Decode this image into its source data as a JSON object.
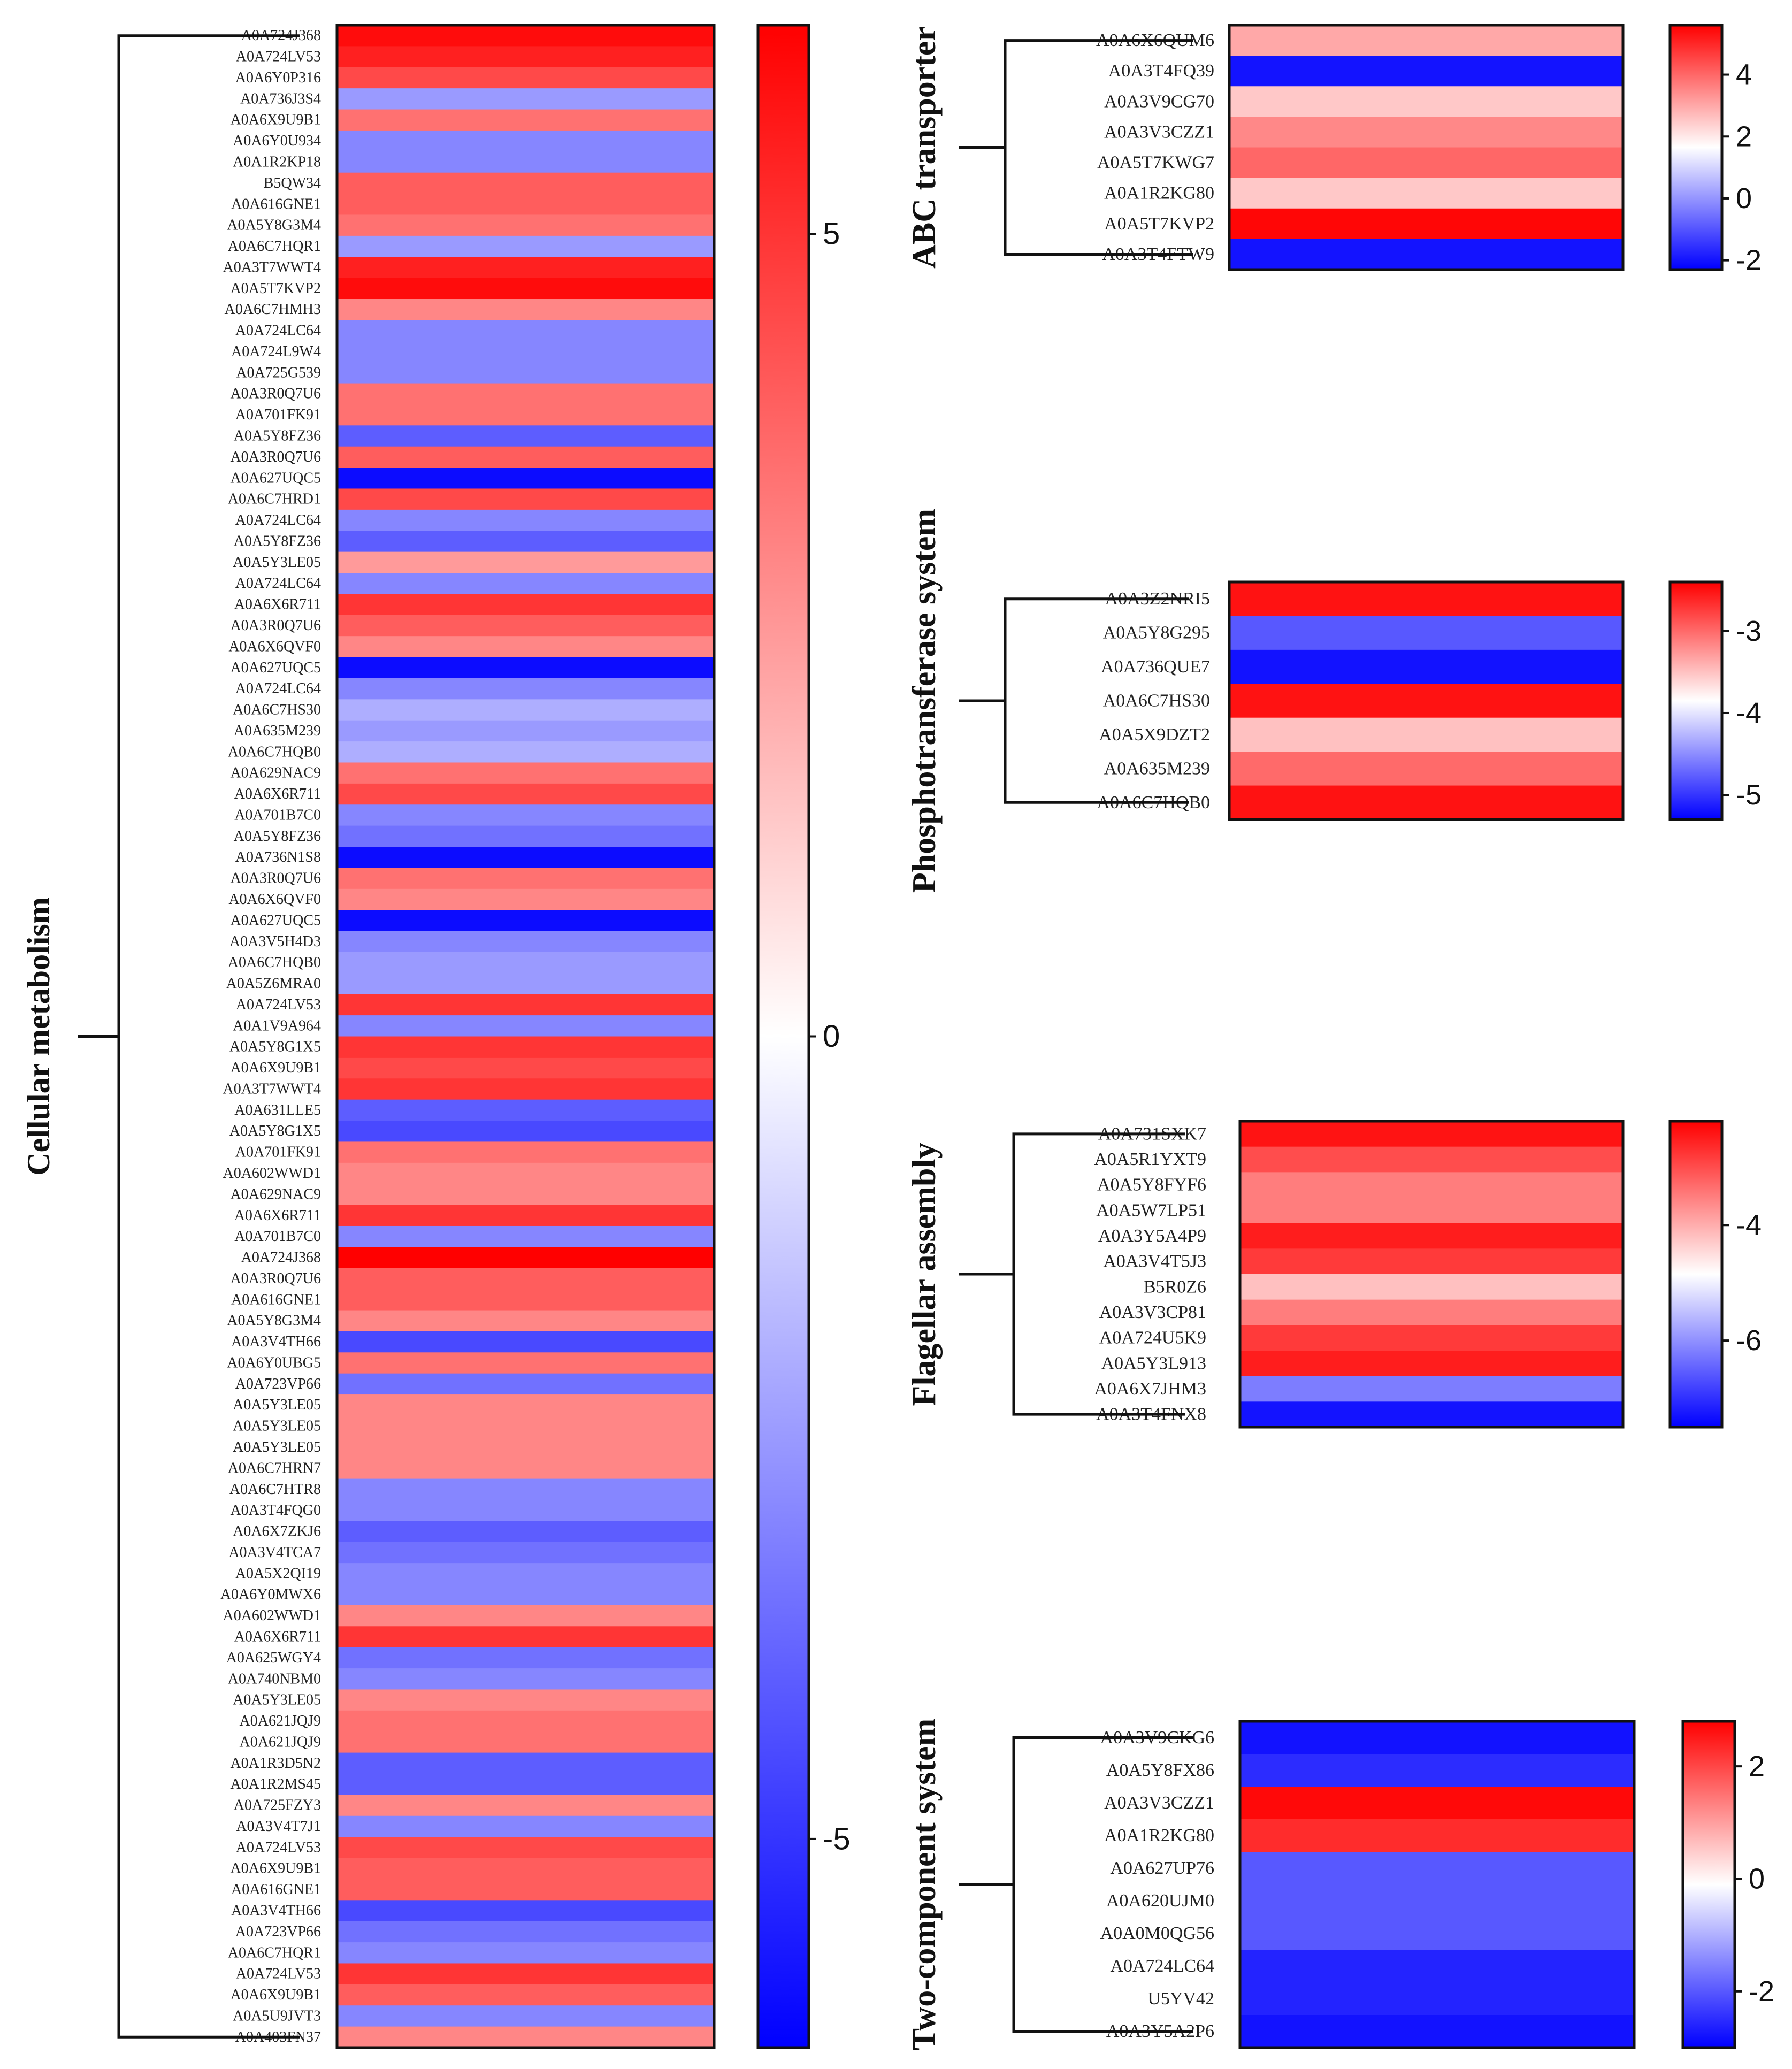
{
  "chart_data": [
    {
      "type": "heatmap",
      "title": "Cellular metabolism",
      "colorscale": [
        "#0000ff",
        "#ffffff",
        "#ff0000"
      ],
      "colorbar": {
        "range": [
          -6.3,
          6.3
        ],
        "ticks": [
          5,
          0,
          -5
        ],
        "tick_labels": [
          "5",
          "0",
          "-5"
        ]
      },
      "rows": [
        "A0A724J368",
        "A0A724LV53",
        "A0A6Y0P316",
        "A0A736J3S4",
        "A0A6X9U9B1",
        "A0A6Y0U934",
        "A0A1R2KP18",
        "B5QW34",
        "A0A616GNE1",
        "A0A5Y8G3M4",
        "A0A6C7HQR1",
        "A0A3T7WWT4",
        "A0A5T7KVP2",
        "A0A6C7HMH3",
        "A0A724LC64",
        "A0A724L9W4",
        "A0A725G539",
        "A0A3R0Q7U6",
        "A0A701FK91",
        "A0A5Y8FZ36",
        "A0A3R0Q7U6",
        "A0A627UQC5",
        "A0A6C7HRD1",
        "A0A724LC64",
        "A0A5Y8FZ36",
        "A0A5Y3LE05",
        "A0A724LC64",
        "A0A6X6R711",
        "A0A3R0Q7U6",
        "A0A6X6QVF0",
        "A0A627UQC5",
        "A0A724LC64",
        "A0A6C7HS30",
        "A0A635M239",
        "A0A6C7HQB0",
        "A0A629NAC9",
        "A0A6X6R711",
        "A0A701B7C0",
        "A0A5Y8FZ36",
        "A0A736N1S8",
        "A0A3R0Q7U6",
        "A0A6X6QVF0",
        "A0A627UQC5",
        "A0A3V5H4D3",
        "A0A6C7HQB0",
        "A0A5Z6MRA0",
        "A0A724LV53",
        "A0A1V9A964",
        "A0A5Y8G1X5",
        "A0A6X9U9B1",
        "A0A3T7WWT4",
        "A0A631LLE5",
        "A0A5Y8G1X5",
        "A0A701FK91",
        "A0A602WWD1",
        "A0A629NAC9",
        "A0A6X6R711",
        "A0A701B7C0",
        "A0A724J368",
        "A0A3R0Q7U6",
        "A0A616GNE1",
        "A0A5Y8G3M4",
        "A0A3V4TH66",
        "A0A6Y0UBG5",
        "A0A723VP66",
        "A0A5Y3LE05",
        "A0A5Y3LE05",
        "A0A5Y3LE05",
        "A0A6C7HRN7",
        "A0A6C7HTR8",
        "A0A3T4FQG0",
        "A0A6X7ZKJ6",
        "A0A3V4TCA7",
        "A0A5X2QI19",
        "A0A6Y0MWX6",
        "A0A602WWD1",
        "A0A6X6R711",
        "A0A625WGY4",
        "A0A740NBM0",
        "A0A5Y3LE05",
        "A0A621JQJ9",
        "A0A621JQJ9",
        "A0A1R3D5N2",
        "A0A1R2MS45",
        "A0A725FZY3",
        "A0A3V4T7J1",
        "A0A724LV53",
        "A0A6X9U9B1",
        "A0A616GNE1",
        "A0A3V4TH66",
        "A0A723VP66",
        "A0A6C7HQR1",
        "A0A724LV53",
        "A0A6X9U9B1",
        "A0A5U9JVT3",
        "A0A403FN37"
      ],
      "values": [
        6.0,
        5.5,
        4.5,
        -2.5,
        3.5,
        -3.0,
        -3.0,
        4.0,
        4.0,
        3.5,
        -2.5,
        5.5,
        6.0,
        3.0,
        -3.0,
        -3.0,
        -3.0,
        3.5,
        3.5,
        -4.0,
        4.0,
        -6.0,
        4.5,
        -3.0,
        -4.0,
        2.5,
        -3.0,
        5.0,
        4.0,
        3.0,
        -6.0,
        -3.0,
        -2.0,
        -2.5,
        -2.0,
        3.5,
        4.5,
        -3.0,
        -3.5,
        -6.0,
        3.5,
        3.0,
        -6.0,
        -3.0,
        -2.5,
        -2.5,
        5.0,
        -3.0,
        5.0,
        4.5,
        5.0,
        -4.0,
        -4.5,
        3.5,
        3.0,
        3.0,
        5.0,
        -3.0,
        6.5,
        4.0,
        4.0,
        3.0,
        -4.5,
        3.5,
        -3.5,
        3.0,
        3.0,
        3.0,
        3.0,
        -3.0,
        -3.0,
        -4.0,
        -3.5,
        -3.0,
        -3.0,
        3.0,
        5.0,
        -3.5,
        -3.0,
        3.0,
        3.5,
        3.5,
        -4.0,
        -4.0,
        3.0,
        -3.0,
        4.5,
        4.0,
        4.0,
        -4.5,
        -3.5,
        -3.0,
        5.0,
        4.0,
        -3.0,
        3.0
      ]
    },
    {
      "type": "heatmap",
      "title": "ABC transporter",
      "colorscale": [
        "#0000ff",
        "#ffffff",
        "#ff0000"
      ],
      "colorbar": {
        "range": [
          -2.3,
          5.6
        ],
        "ticks": [
          4,
          2,
          0,
          -2
        ],
        "tick_labels": [
          "4",
          "2",
          "0",
          "-2"
        ]
      },
      "rows": [
        "A0A6X6QUM6",
        "A0A3T4FQ39",
        "A0A3V9CG70",
        "A0A3V3CZZ1",
        "A0A5T7KWG7",
        "A0A1R2KG80",
        "A0A5T7KVP2",
        "A0A3T4FTW9"
      ],
      "values": [
        3.0,
        -2.0,
        2.5,
        3.5,
        4.0,
        2.5,
        5.5,
        -2.0
      ]
    },
    {
      "type": "heatmap",
      "title": "Phosphotransferase system",
      "colorscale": [
        "#0000ff",
        "#ffffff",
        "#ff0000"
      ],
      "colorbar": {
        "range": [
          -5.3,
          -2.4
        ],
        "ticks": [
          -3,
          -4,
          -5
        ],
        "tick_labels": [
          "-3",
          "-4",
          "-5"
        ]
      },
      "rows": [
        "A0A3Z2NRI5",
        "A0A5Y8G295",
        "A0A736QUE7",
        "A0A6C7HS30",
        "A0A5X9DZT2",
        "A0A635M239",
        "A0A6C7HQB0"
      ],
      "values": [
        -2.5,
        -4.8,
        -5.2,
        -2.5,
        -3.5,
        -3.0,
        -2.5
      ]
    },
    {
      "type": "heatmap",
      "title": "Flagellar assembly",
      "colorscale": [
        "#0000ff",
        "#ffffff",
        "#ff0000"
      ],
      "colorbar": {
        "range": [
          -7.5,
          -2.2
        ],
        "ticks": [
          -4,
          -6
        ],
        "tick_labels": [
          "-4",
          "-6"
        ]
      },
      "rows": [
        "A0A731SXK7",
        "A0A5R1YXT9",
        "A0A5Y8FYF6",
        "A0A5W7LP51",
        "A0A3Y5A4P9",
        "A0A3V4T5J3",
        "B5R0Z6",
        "A0A3V3CP81",
        "A0A724U5K9",
        "A0A5Y3L913",
        "A0A6X7JHM3",
        "A0A3T4FNX8"
      ],
      "values": [
        -2.4,
        -3.0,
        -3.5,
        -3.5,
        -2.5,
        -2.8,
        -4.2,
        -3.5,
        -2.8,
        -2.5,
        -6.2,
        -7.3
      ]
    },
    {
      "type": "heatmap",
      "title": "Two-component system",
      "colorscale": [
        "#0000ff",
        "#ffffff",
        "#ff0000"
      ],
      "colorbar": {
        "range": [
          -3.0,
          2.8
        ],
        "ticks": [
          2,
          0,
          -2
        ],
        "tick_labels": [
          "2",
          "0",
          "-2"
        ]
      },
      "rows": [
        "A0A3V9CKG6",
        "A0A5Y8FX86",
        "A0A3V3CZZ1",
        "A0A1R2KG80",
        "A0A627UP76",
        "A0A620UJM0",
        "A0A0M0QG56",
        "A0A724LC64",
        "U5YV42",
        "A0A3Y5A2P6"
      ],
      "values": [
        -2.8,
        -2.5,
        2.7,
        2.3,
        -2.0,
        -2.0,
        -2.0,
        -2.6,
        -2.6,
        -2.8
      ]
    }
  ]
}
